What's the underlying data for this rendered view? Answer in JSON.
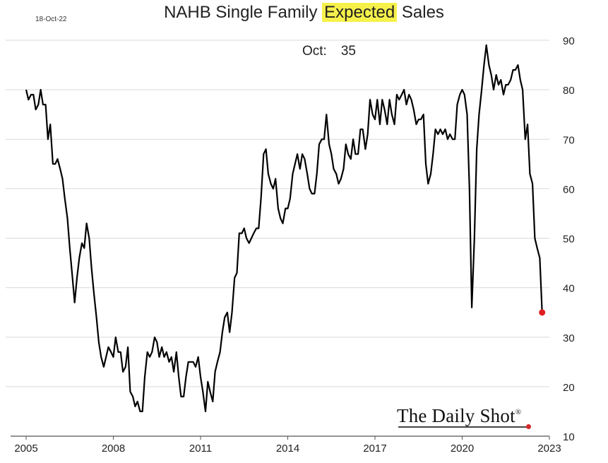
{
  "header": {
    "date": "18-Oct-22",
    "title_before": "NAHB Single Family ",
    "title_highlight": "Expected",
    "title_after": " Sales",
    "latest_label": "Oct:",
    "latest_value": "35"
  },
  "logo": {
    "text": "The Daily Shot",
    "mark": "®"
  },
  "colors": {
    "line": "#000000",
    "highlight": "#f6f14a",
    "latest_point": "#e02020",
    "grid": "#d9d9d9"
  },
  "chart_data": {
    "type": "line",
    "title": "NAHB Single Family Expected Sales",
    "xlim": [
      2005,
      2023
    ],
    "ylim": [
      10,
      90
    ],
    "x_ticks": [
      2005,
      2008,
      2011,
      2014,
      2017,
      2020,
      2023
    ],
    "x_tick_labels": [
      "2005",
      "2008",
      "2011",
      "2014",
      "2017",
      "2020",
      "2023"
    ],
    "y_ticks": [
      10,
      20,
      30,
      40,
      50,
      60,
      70,
      80,
      90
    ],
    "y_tick_labels": [
      "10",
      "20",
      "30",
      "40",
      "50",
      "60",
      "70",
      "80",
      "90"
    ],
    "y_axis_side": "right",
    "grid": true,
    "series": [
      {
        "x": [
          2005.0,
          2005.08,
          2005.17,
          2005.25,
          2005.33,
          2005.42,
          2005.5,
          2005.58,
          2005.67,
          2005.75,
          2005.83,
          2005.92,
          2006.0,
          2006.08,
          2006.17,
          2006.25,
          2006.33,
          2006.42,
          2006.5,
          2006.58,
          2006.67,
          2006.75,
          2006.83,
          2006.92,
          2007.0,
          2007.08,
          2007.17,
          2007.25,
          2007.33,
          2007.42,
          2007.5,
          2007.58,
          2007.67,
          2007.75,
          2007.83,
          2007.92,
          2008.0,
          2008.08,
          2008.17,
          2008.25,
          2008.33,
          2008.42,
          2008.5,
          2008.58,
          2008.67,
          2008.75,
          2008.83,
          2008.92,
          2009.0,
          2009.08,
          2009.17,
          2009.25,
          2009.33,
          2009.42,
          2009.5,
          2009.58,
          2009.67,
          2009.75,
          2009.83,
          2009.92,
          2010.0,
          2010.08,
          2010.17,
          2010.25,
          2010.33,
          2010.42,
          2010.5,
          2010.58,
          2010.67,
          2010.75,
          2010.83,
          2010.92,
          2011.0,
          2011.08,
          2011.17,
          2011.25,
          2011.33,
          2011.42,
          2011.5,
          2011.58,
          2011.67,
          2011.75,
          2011.83,
          2011.92,
          2012.0,
          2012.08,
          2012.17,
          2012.25,
          2012.33,
          2012.42,
          2012.5,
          2012.58,
          2012.67,
          2012.75,
          2012.83,
          2012.92,
          2013.0,
          2013.08,
          2013.17,
          2013.25,
          2013.33,
          2013.42,
          2013.5,
          2013.58,
          2013.67,
          2013.75,
          2013.83,
          2013.92,
          2014.0,
          2014.08,
          2014.17,
          2014.25,
          2014.33,
          2014.42,
          2014.5,
          2014.58,
          2014.67,
          2014.75,
          2014.83,
          2014.92,
          2015.0,
          2015.08,
          2015.17,
          2015.25,
          2015.33,
          2015.42,
          2015.5,
          2015.58,
          2015.67,
          2015.75,
          2015.83,
          2015.92,
          2016.0,
          2016.08,
          2016.17,
          2016.25,
          2016.33,
          2016.42,
          2016.5,
          2016.58,
          2016.67,
          2016.75,
          2016.83,
          2016.92,
          2017.0,
          2017.08,
          2017.17,
          2017.25,
          2017.33,
          2017.42,
          2017.5,
          2017.58,
          2017.67,
          2017.75,
          2017.83,
          2017.92,
          2018.0,
          2018.08,
          2018.17,
          2018.25,
          2018.33,
          2018.42,
          2018.5,
          2018.58,
          2018.67,
          2018.75,
          2018.83,
          2018.92,
          2019.0,
          2019.08,
          2019.17,
          2019.25,
          2019.33,
          2019.42,
          2019.5,
          2019.58,
          2019.67,
          2019.75,
          2019.83,
          2019.92,
          2020.0,
          2020.08,
          2020.17,
          2020.25,
          2020.33,
          2020.42,
          2020.5,
          2020.58,
          2020.67,
          2020.75,
          2020.83,
          2020.92,
          2021.0,
          2021.08,
          2021.17,
          2021.25,
          2021.33,
          2021.42,
          2021.5,
          2021.58,
          2021.67,
          2021.75,
          2021.83,
          2021.92,
          2022.0,
          2022.08,
          2022.17,
          2022.25,
          2022.33,
          2022.42,
          2022.5,
          2022.58,
          2022.67,
          2022.75
        ],
        "values": [
          80,
          78,
          79,
          79,
          76,
          77,
          80,
          77,
          77,
          70,
          73,
          65,
          65,
          66,
          64,
          62,
          58,
          54,
          48,
          43,
          37,
          42,
          46,
          49,
          48,
          53,
          50,
          44,
          39,
          34,
          29,
          26,
          24,
          26,
          28,
          27,
          26,
          30,
          27,
          27,
          23,
          24,
          28,
          19,
          18,
          16,
          17,
          15,
          15,
          22,
          27,
          26,
          27,
          30,
          29,
          26,
          28,
          26,
          27,
          25,
          26,
          23,
          27,
          22,
          18,
          18,
          22,
          25,
          25,
          25,
          24,
          26,
          22,
          19,
          15,
          21,
          19,
          17,
          23,
          25,
          27,
          31,
          34,
          35,
          31,
          35,
          42,
          43,
          51,
          51,
          52,
          50,
          49,
          50,
          51,
          52,
          52,
          58,
          67,
          68,
          63,
          61,
          60,
          62,
          56,
          54,
          53,
          56,
          56,
          58,
          63,
          65,
          67,
          64,
          67,
          66,
          63,
          60,
          59,
          59,
          63,
          69,
          70,
          70,
          75,
          69,
          67,
          64,
          63,
          61,
          62,
          64,
          69,
          67,
          66,
          70,
          67,
          67,
          72,
          72,
          68,
          71,
          78,
          75,
          74,
          78,
          73,
          78,
          76,
          73,
          78,
          75,
          73,
          79,
          78,
          79,
          80,
          77,
          79,
          78,
          76,
          73,
          74,
          74,
          75,
          65,
          61,
          63,
          67,
          72,
          71,
          72,
          71,
          72,
          70,
          71,
          70,
          70,
          77,
          79,
          80,
          79,
          75,
          60,
          36,
          50,
          68,
          75,
          80,
          85,
          89,
          85,
          83,
          80,
          83,
          81,
          82,
          79,
          81,
          81,
          82,
          84,
          84,
          85,
          82,
          80,
          70,
          73,
          63,
          61,
          50,
          48,
          46,
          35
        ]
      }
    ],
    "latest_point": {
      "x": 2022.75,
      "y": 35
    }
  }
}
